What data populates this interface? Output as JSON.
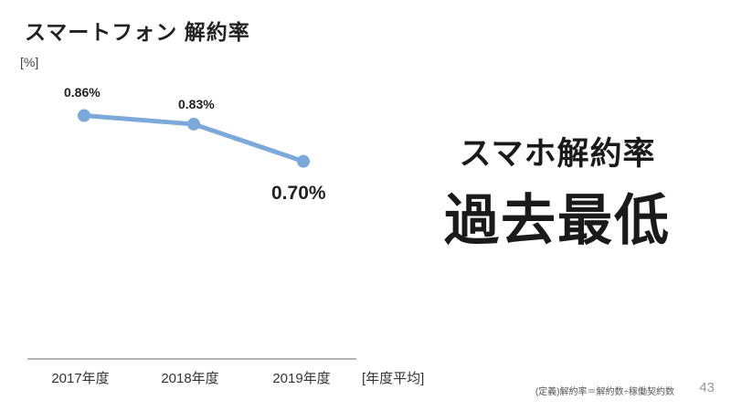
{
  "slide": {
    "title": "スマートフォン 解約率",
    "y_axis_unit": "[%]",
    "x_axis_note": "[年度平均]",
    "highlight_line1": "スマホ解約率",
    "highlight_line2": "過去最低",
    "footnote": "(定義)解約率＝解約数÷稼働契約数",
    "page_number": "43"
  },
  "chart_data": {
    "type": "line",
    "title": "スマートフォン 解約率",
    "unit": "%",
    "categories": [
      "2017年度",
      "2018年度",
      "2019年度"
    ],
    "values": [
      0.86,
      0.83,
      0.7
    ],
    "data_labels": [
      "0.86%",
      "0.83%",
      "0.70%"
    ],
    "x_note": "[年度平均]",
    "ylabel": "[%]",
    "series_color": "#7CA9DC",
    "marker": "circle",
    "grid": "off",
    "legend": "off"
  }
}
